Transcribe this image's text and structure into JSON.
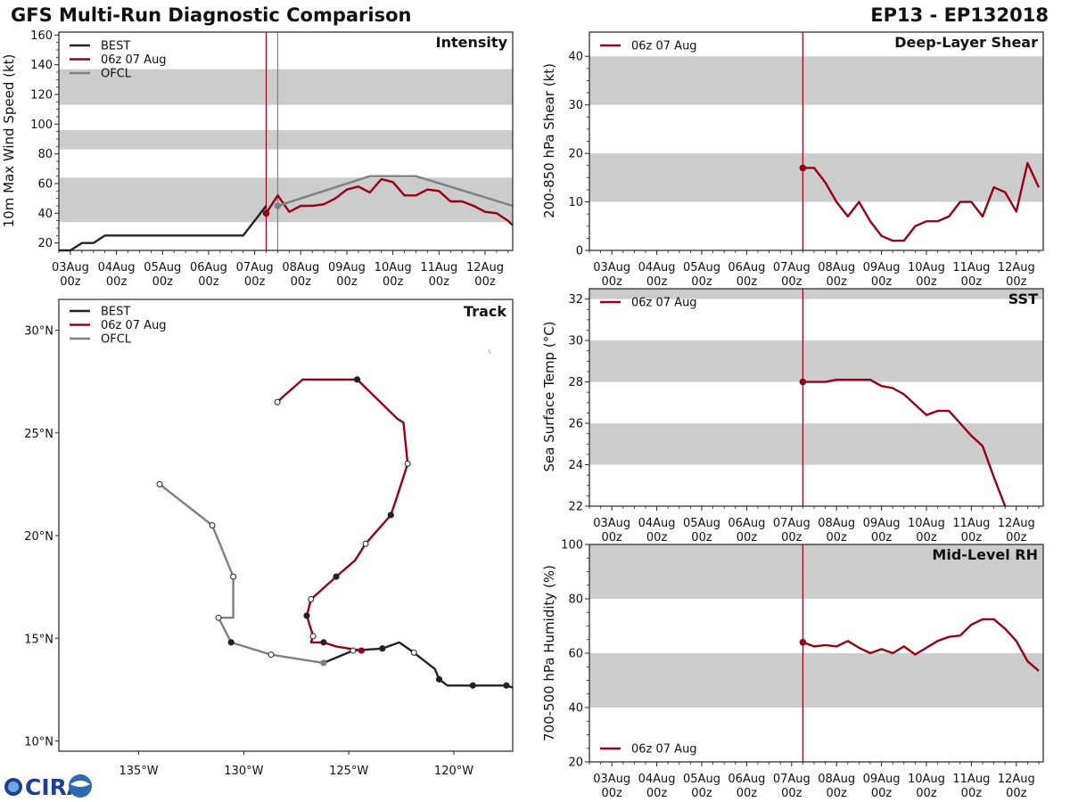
{
  "header": {
    "title": "GFS Multi-Run Diagnostic Comparison",
    "storm_id": "EP13 - EP132018",
    "logo_text": "CIRA"
  },
  "colors": {
    "best": "#222222",
    "run": "#990011",
    "ofcl": "#808080",
    "band": "#cccccc",
    "frame": "#222222"
  },
  "time_axis": {
    "tick_labels": [
      [
        "03Aug",
        "00z"
      ],
      [
        "04Aug",
        "00z"
      ],
      [
        "05Aug",
        "00z"
      ],
      [
        "06Aug",
        "00z"
      ],
      [
        "07Aug",
        "00z"
      ],
      [
        "08Aug",
        "00z"
      ],
      [
        "09Aug",
        "00z"
      ],
      [
        "10Aug",
        "00z"
      ],
      [
        "11Aug",
        "00z"
      ],
      [
        "12Aug",
        "00z"
      ]
    ]
  },
  "chart_data": [
    {
      "id": "intensity",
      "type": "line",
      "title": "Intensity",
      "ylabel": "10m Max Wind Speed (kt)",
      "xlim": [
        -0.25,
        9.6
      ],
      "ylim": [
        15,
        162
      ],
      "yticks": [
        20,
        40,
        60,
        80,
        100,
        120,
        140,
        160
      ],
      "bands": [
        [
          34,
          64
        ],
        [
          83,
          96
        ],
        [
          113,
          137
        ]
      ],
      "vlines": [
        {
          "x": 4.25,
          "color": "run"
        },
        {
          "x": 4.5,
          "color": "ofcl"
        }
      ],
      "legend": [
        "BEST",
        "06z 07 Aug",
        "OFCL"
      ],
      "series": [
        {
          "name": "BEST",
          "color": "best",
          "x": [
            -0.25,
            0.0,
            0.25,
            0.5,
            0.75,
            1.0,
            1.5,
            2.0,
            2.5,
            3.0,
            3.5,
            3.75,
            4.0,
            4.25
          ],
          "y": [
            15,
            15,
            20,
            20,
            25,
            25,
            25,
            25,
            25,
            25,
            25,
            25,
            35,
            45
          ]
        },
        {
          "name": "06z 07 Aug",
          "color": "run",
          "start_marker": true,
          "x": [
            4.25,
            4.5,
            4.75,
            5.0,
            5.25,
            5.5,
            5.75,
            6.0,
            6.25,
            6.5,
            6.75,
            7.0,
            7.25,
            7.5,
            7.75,
            8.0,
            8.25,
            8.5,
            8.75,
            9.0,
            9.25,
            9.5,
            9.6
          ],
          "y": [
            40,
            52,
            41,
            45,
            45,
            46,
            50,
            56,
            58,
            54,
            63,
            61,
            52,
            52,
            56,
            55,
            48,
            48,
            45,
            41,
            40,
            35,
            32
          ]
        },
        {
          "name": "OFCL",
          "color": "ofcl",
          "start_marker": true,
          "marker_color": "ofcl",
          "x": [
            4.5,
            5.0,
            6.5,
            7.5,
            9.6
          ],
          "y": [
            45,
            50,
            65,
            65,
            45
          ]
        }
      ]
    },
    {
      "id": "shear",
      "type": "line",
      "title": "Deep-Layer Shear",
      "ylabel": "200-850 hPa Shear (kt)",
      "xlim": [
        -0.5,
        9.6
      ],
      "ylim": [
        0,
        45
      ],
      "yticks": [
        0,
        10,
        20,
        30,
        40
      ],
      "bands": [
        [
          10,
          20
        ],
        [
          30,
          40
        ]
      ],
      "vlines": [
        {
          "x": 4.25,
          "color": "run"
        }
      ],
      "legend": [
        "06z 07 Aug"
      ],
      "series": [
        {
          "name": "06z 07 Aug",
          "color": "run",
          "start_marker": true,
          "x": [
            4.25,
            4.5,
            4.75,
            5.0,
            5.25,
            5.5,
            5.75,
            6.0,
            6.25,
            6.5,
            6.75,
            7.0,
            7.25,
            7.5,
            7.75,
            8.0,
            8.25,
            8.5,
            8.75,
            9.0,
            9.25,
            9.5
          ],
          "y": [
            17,
            17,
            14,
            10,
            7,
            10,
            6,
            3,
            2,
            2,
            5,
            6,
            6,
            7,
            10,
            10,
            7,
            13,
            12,
            8,
            18,
            13
          ]
        }
      ]
    },
    {
      "id": "sst",
      "type": "line",
      "title": "SST",
      "ylabel": "Sea Surface Temp (°C)",
      "xlim": [
        -0.5,
        9.6
      ],
      "ylim": [
        22,
        32.5
      ],
      "yticks": [
        22,
        24,
        26,
        28,
        30,
        32
      ],
      "bands": [
        [
          24,
          26
        ],
        [
          28,
          30
        ],
        [
          32,
          34
        ]
      ],
      "vlines": [
        {
          "x": 4.25,
          "color": "run"
        }
      ],
      "legend": [
        "06z 07 Aug"
      ],
      "series": [
        {
          "name": "06z 07 Aug",
          "color": "run",
          "start_marker": true,
          "x": [
            4.25,
            4.5,
            4.75,
            5.0,
            5.25,
            5.5,
            5.75,
            6.0,
            6.25,
            6.5,
            6.75,
            7.0,
            7.25,
            7.5,
            7.75,
            8.0,
            8.25,
            8.5,
            8.75
          ],
          "y": [
            28.0,
            28.0,
            28.0,
            28.1,
            28.1,
            28.1,
            28.1,
            27.8,
            27.7,
            27.4,
            26.9,
            26.4,
            26.6,
            26.6,
            26.0,
            25.4,
            24.9,
            23.4,
            22.0
          ]
        }
      ]
    },
    {
      "id": "rh",
      "type": "line",
      "title": "Mid-Level RH",
      "ylabel": "700-500 hPa Humidity (%)",
      "xlim": [
        -0.5,
        9.6
      ],
      "ylim": [
        20,
        100
      ],
      "yticks": [
        20,
        40,
        60,
        80,
        100
      ],
      "bands": [
        [
          40,
          60
        ],
        [
          80,
          100
        ]
      ],
      "vlines": [
        {
          "x": 4.25,
          "color": "run"
        }
      ],
      "legend": [
        "06z 07 Aug"
      ],
      "legend_position": "bottom-left",
      "series": [
        {
          "name": "06z 07 Aug",
          "color": "run",
          "start_marker": true,
          "x": [
            4.25,
            4.5,
            4.75,
            5.0,
            5.25,
            5.5,
            5.75,
            6.0,
            6.25,
            6.5,
            6.75,
            7.0,
            7.25,
            7.5,
            7.75,
            8.0,
            8.25,
            8.5,
            8.75,
            9.0,
            9.25,
            9.5
          ],
          "y": [
            64,
            62.5,
            63,
            62.5,
            64.5,
            62,
            60,
            61.5,
            60,
            62.5,
            59.5,
            62,
            64.5,
            66,
            66.5,
            70.5,
            72.5,
            72.5,
            69,
            64.5,
            57,
            53.5
          ]
        }
      ]
    },
    {
      "id": "track",
      "type": "scatter",
      "title": "Track",
      "xlim": [
        -138.8,
        -117.2
      ],
      "ylim": [
        9.5,
        31.5
      ],
      "xticks": [
        -135,
        -130,
        -125,
        -120
      ],
      "xtick_labels": [
        "135°W",
        "130°W",
        "125°W",
        "120°W"
      ],
      "yticks": [
        10,
        15,
        20,
        25,
        30
      ],
      "ytick_labels": [
        "10°N",
        "15°N",
        "20°N",
        "25°N",
        "30°N"
      ],
      "legend": [
        "BEST",
        "06z 07 Aug",
        "OFCL"
      ],
      "series": [
        {
          "name": "BEST",
          "color": "best",
          "lon": [
            -117.2,
            -117.5,
            -119.1,
            -120.3,
            -120.7,
            -120.9,
            -121.9,
            -122.6,
            -123.4,
            -124.8,
            -126.2
          ],
          "lat": [
            12.6,
            12.7,
            12.7,
            12.7,
            13.0,
            13.5,
            14.3,
            14.8,
            14.5,
            14.4,
            13.8
          ],
          "markers": [
            0,
            1,
            1,
            0,
            1,
            0,
            2,
            0,
            1,
            2,
            0
          ]
        },
        {
          "name": "06z 07 Aug",
          "color": "run",
          "lon": [
            -124.4,
            -125.6,
            -126.2,
            -126.8,
            -126.7,
            -127.0,
            -126.8,
            -125.6,
            -124.7,
            -124.2,
            -123.0,
            -122.7,
            -122.2,
            -122.4,
            -122.7,
            -124.6,
            -127.2,
            -128.2,
            -128.4
          ],
          "lat": [
            14.4,
            14.6,
            14.8,
            14.8,
            15.1,
            16.1,
            16.9,
            18.0,
            18.8,
            19.6,
            21.0,
            21.9,
            23.5,
            25.5,
            25.7,
            27.6,
            27.6,
            26.7,
            26.5
          ],
          "markers": [
            1,
            0,
            1,
            0,
            2,
            1,
            2,
            1,
            0,
            2,
            1,
            0,
            2,
            0,
            0,
            1,
            0,
            0,
            2
          ]
        },
        {
          "name": "OFCL",
          "color": "ofcl",
          "lon": [
            -126.2,
            -128.7,
            -130.6,
            -131.2,
            -130.5,
            -130.5,
            -131.5,
            -134.0
          ],
          "lat": [
            13.8,
            14.2,
            14.8,
            16.0,
            16.0,
            18.0,
            20.5,
            22.5
          ],
          "markers": [
            3,
            2,
            1,
            2,
            0,
            2,
            2,
            2
          ]
        }
      ]
    }
  ]
}
